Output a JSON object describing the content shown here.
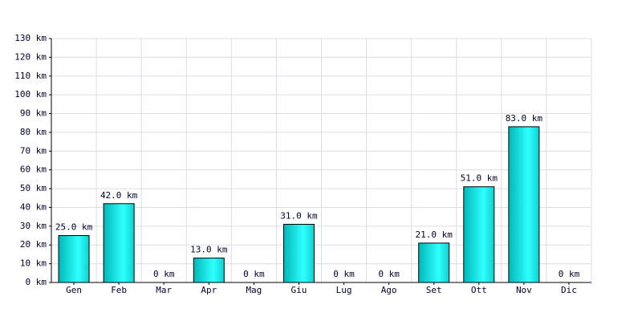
{
  "chart_data": {
    "type": "bar",
    "categories": [
      "Gen",
      "Feb",
      "Mar",
      "Apr",
      "Mag",
      "Giu",
      "Lug",
      "Ago",
      "Set",
      "Ott",
      "Nov",
      "Dic"
    ],
    "values": [
      25,
      42,
      0,
      13,
      0,
      31,
      0,
      0,
      21,
      51,
      83,
      0
    ],
    "value_labels": [
      "25.0 km",
      "42.0 km",
      "0 km",
      "13.0 km",
      "0 km",
      "31.0 km",
      "0 km",
      "0 km",
      "21.0 km",
      "51.0 km",
      "83.0 km",
      "0 km"
    ],
    "color": "#00b8b8",
    "ylim": [
      0,
      130
    ],
    "yticks": [
      {
        "value": 0,
        "label": "0 km"
      },
      {
        "value": 10,
        "label": "10 km"
      },
      {
        "value": 20,
        "label": "20 km"
      },
      {
        "value": 30,
        "label": "30 km"
      },
      {
        "value": 40,
        "label": "40 km"
      },
      {
        "value": 50,
        "label": "50 km"
      },
      {
        "value": 60,
        "label": "60 km"
      },
      {
        "value": 70,
        "label": "70 km"
      },
      {
        "value": 80,
        "label": "80 km"
      },
      {
        "value": 90,
        "label": "90 km"
      },
      {
        "value": 100,
        "label": "100 km"
      },
      {
        "value": 110,
        "label": "110 km"
      },
      {
        "value": 120,
        "label": "120 km"
      },
      {
        "value": 130,
        "label": "130 km"
      }
    ],
    "grid": true
  }
}
